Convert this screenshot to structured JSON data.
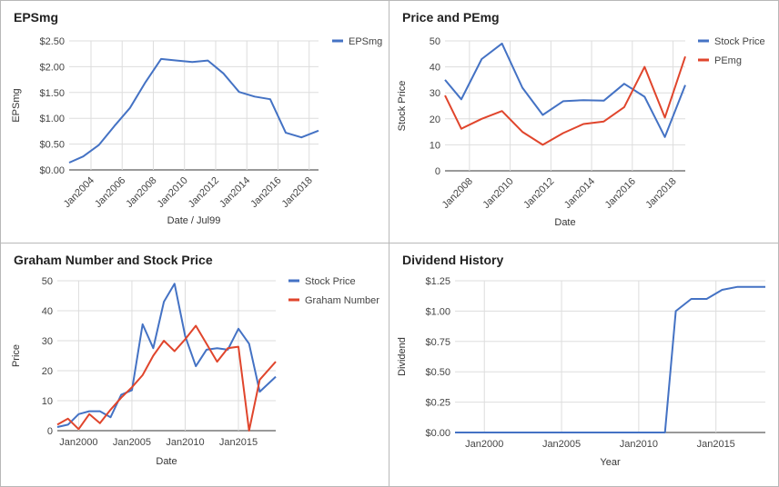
{
  "colors": {
    "blue": "#4472c4",
    "red": "#e0452c",
    "grid": "#dddddd",
    "axis": "#333333",
    "text": "#444444"
  },
  "chart_data": [
    {
      "type": "line",
      "title": "EPSmg",
      "xlabel": "Date / Jul99",
      "ylabel": "EPSmg",
      "xlim": [
        2002.6,
        2018.6
      ],
      "ylim": [
        0,
        2.5
      ],
      "x_ticks": [
        2004,
        2006,
        2008,
        2010,
        2012,
        2014,
        2016,
        2018
      ],
      "x_tick_labels": [
        "Jan2004",
        "Jan2006",
        "Jan2008",
        "Jan2010",
        "Jan2012",
        "Jan2014",
        "Jan2016",
        "Jan2018"
      ],
      "y_ticks": [
        0,
        0.5,
        1.0,
        1.5,
        2.0,
        2.5
      ],
      "y_tick_labels": [
        "$0.00",
        "$0.50",
        "$1.00",
        "$1.50",
        "$2.00",
        "$2.50"
      ],
      "legend": "right",
      "grid": true,
      "series": [
        {
          "name": "EPSmg",
          "color": "#4472c4",
          "x": [
            2002.6,
            2003.5,
            2004.5,
            2005.5,
            2006.5,
            2007.5,
            2008.5,
            2009.5,
            2010.5,
            2011.5,
            2012.5,
            2013.5,
            2014.5,
            2015.5,
            2016.5,
            2017.5,
            2018.6
          ],
          "y": [
            0.14,
            0.26,
            0.48,
            0.85,
            1.2,
            1.7,
            2.15,
            2.12,
            2.09,
            2.12,
            1.87,
            1.51,
            1.42,
            1.37,
            0.72,
            0.63,
            0.76
          ]
        }
      ]
    },
    {
      "type": "line",
      "title": "Price and PEmg",
      "xlabel": "Date",
      "ylabel": "Stock Price",
      "xlim": [
        2006.8,
        2018.6
      ],
      "ylim": [
        0,
        50
      ],
      "x_ticks": [
        2008,
        2010,
        2012,
        2014,
        2016,
        2018
      ],
      "x_tick_labels": [
        "Jan2008",
        "Jan2010",
        "Jan2012",
        "Jan2014",
        "Jan2016",
        "Jan2018"
      ],
      "y_ticks": [
        0,
        10,
        20,
        30,
        40,
        50
      ],
      "y_tick_labels": [
        "0",
        "10",
        "20",
        "30",
        "40",
        "50"
      ],
      "legend": "right",
      "grid": true,
      "series": [
        {
          "name": "Stock Price",
          "color": "#4472c4",
          "x": [
            2006.8,
            2007.6,
            2008.6,
            2009.6,
            2010.6,
            2011.6,
            2012.6,
            2013.6,
            2014.6,
            2015.6,
            2016.6,
            2017.6,
            2018.6
          ],
          "y": [
            35,
            27.5,
            43,
            49,
            32,
            21.5,
            26.8,
            27.2,
            27,
            33.5,
            28.5,
            13,
            33
          ]
        },
        {
          "name": "PEmg",
          "color": "#e0452c",
          "x": [
            2006.8,
            2007.6,
            2008.6,
            2009.6,
            2010.6,
            2011.6,
            2012.6,
            2013.6,
            2014.6,
            2015.6,
            2016.6,
            2017.6,
            2018.6
          ],
          "y": [
            29,
            16.2,
            20,
            23,
            15,
            10,
            14.5,
            18,
            19,
            24.5,
            40,
            20.5,
            44
          ]
        }
      ]
    },
    {
      "type": "line",
      "title": "Graham Number and Stock Price",
      "xlabel": "Date",
      "ylabel": "Price",
      "xlim": [
        1998,
        2018.5
      ],
      "ylim": [
        0,
        50
      ],
      "x_ticks": [
        2000,
        2005,
        2010,
        2015
      ],
      "x_tick_labels": [
        "Jan2000",
        "Jan2005",
        "Jan2010",
        "Jan2015"
      ],
      "y_ticks": [
        0,
        10,
        20,
        30,
        40,
        50
      ],
      "y_tick_labels": [
        "0",
        "10",
        "20",
        "30",
        "40",
        "50"
      ],
      "legend": "right",
      "grid": true,
      "series": [
        {
          "name": "Stock Price",
          "color": "#4472c4",
          "x": [
            1998,
            1999,
            2000,
            2001,
            2002,
            2003,
            2004,
            2005,
            2006,
            2007,
            2008,
            2009,
            2010,
            2011,
            2012,
            2013,
            2014,
            2015,
            2016,
            2017,
            2018.5
          ],
          "y": [
            1.2,
            2,
            5.5,
            6.5,
            6.5,
            4.5,
            12,
            13.5,
            35.5,
            27.5,
            43,
            49,
            31.5,
            21.5,
            27,
            27.5,
            27,
            34,
            29,
            13,
            18
          ]
        },
        {
          "name": "Graham Number",
          "color": "#e0452c",
          "x": [
            1998,
            1999,
            2000,
            2001,
            2002,
            2003,
            2004,
            2005,
            2006,
            2007,
            2008,
            2009,
            2010,
            2011,
            2012,
            2013,
            2014,
            2015,
            2016,
            2017,
            2018.5
          ],
          "y": [
            2,
            4,
            0.5,
            5.5,
            2.5,
            7,
            11,
            14.5,
            18.5,
            25,
            30,
            26.5,
            30.5,
            35,
            29,
            23,
            27.5,
            28,
            0,
            17,
            23
          ]
        }
      ]
    },
    {
      "type": "line",
      "title": "Dividend History",
      "xlabel": "Year",
      "ylabel": "Dividend",
      "xlim": [
        1998.1,
        2018.2
      ],
      "ylim": [
        0,
        1.25
      ],
      "x_ticks": [
        2000,
        2005,
        2010,
        2015
      ],
      "x_tick_labels": [
        "Jan2000",
        "Jan2005",
        "Jan2010",
        "Jan2015"
      ],
      "y_ticks": [
        0,
        0.25,
        0.5,
        0.75,
        1.0,
        1.25
      ],
      "y_tick_labels": [
        "$0.00",
        "$0.25",
        "$0.50",
        "$0.75",
        "$1.00",
        "$1.25"
      ],
      "legend": "none",
      "grid": true,
      "series": [
        {
          "name": "Dividend",
          "color": "#4472c4",
          "x": [
            1998.1,
            2011.7,
            2012.4,
            2013.4,
            2014.4,
            2015.4,
            2016.4,
            2017.2,
            2018.2
          ],
          "y": [
            0,
            0,
            1.0,
            1.1,
            1.1,
            1.175,
            1.2,
            1.2,
            1.2
          ]
        }
      ]
    }
  ]
}
